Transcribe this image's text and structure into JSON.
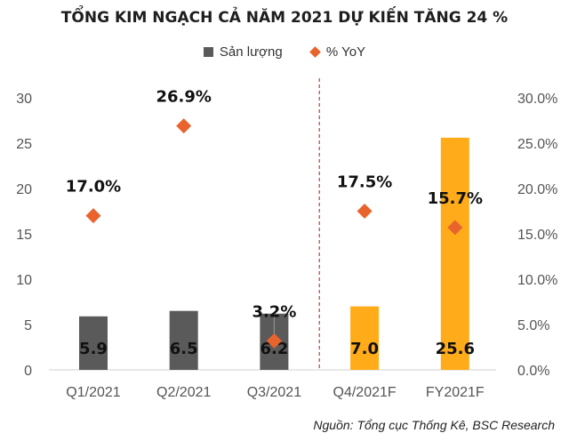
{
  "chart_data": {
    "type": "bar",
    "title": "TỔNG KIM NGẠCH CẢ NĂM 2021 DỰ KIẾN TĂNG 24 %",
    "categories": [
      "Q1/2021",
      "Q2/2021",
      "Q3/2021",
      "Q4/2021F",
      "FY2021F"
    ],
    "series": [
      {
        "name": "Sản lượng",
        "type": "bar",
        "axis": "left",
        "values": [
          5.9,
          6.5,
          6.2,
          7.0,
          25.6
        ],
        "labels": [
          "5.9",
          "6.5",
          "6.2",
          "7.0",
          "25.6"
        ],
        "colors": [
          "#5a5a5a",
          "#5a5a5a",
          "#5a5a5a",
          "#ffab1a",
          "#ffab1a"
        ]
      },
      {
        "name": "% YoY",
        "type": "scatter",
        "marker": "diamond",
        "axis": "right",
        "values": [
          17.0,
          26.9,
          3.2,
          17.5,
          15.7
        ],
        "labels": [
          "17.0%",
          "26.9%",
          "3.2%",
          "17.5%",
          "15.7%"
        ],
        "color": "#e8642c"
      }
    ],
    "y_left": {
      "ylim": [
        0,
        30
      ],
      "ticks": [
        "0",
        "5",
        "10",
        "15",
        "20",
        "25",
        "30"
      ]
    },
    "y_right": {
      "ylim": [
        0,
        30
      ],
      "ticks": [
        "0.0%",
        "5.0%",
        "10.0%",
        "15.0%",
        "20.0%",
        "25.0%",
        "30.0%"
      ]
    },
    "grid": false,
    "legend": "top-center",
    "divider": "dashed line between Q3/2021 and Q4/2021F",
    "divider_color": "#c0504d"
  },
  "source": "Nguồn: Tổng cục Thống Kê, BSC Research"
}
